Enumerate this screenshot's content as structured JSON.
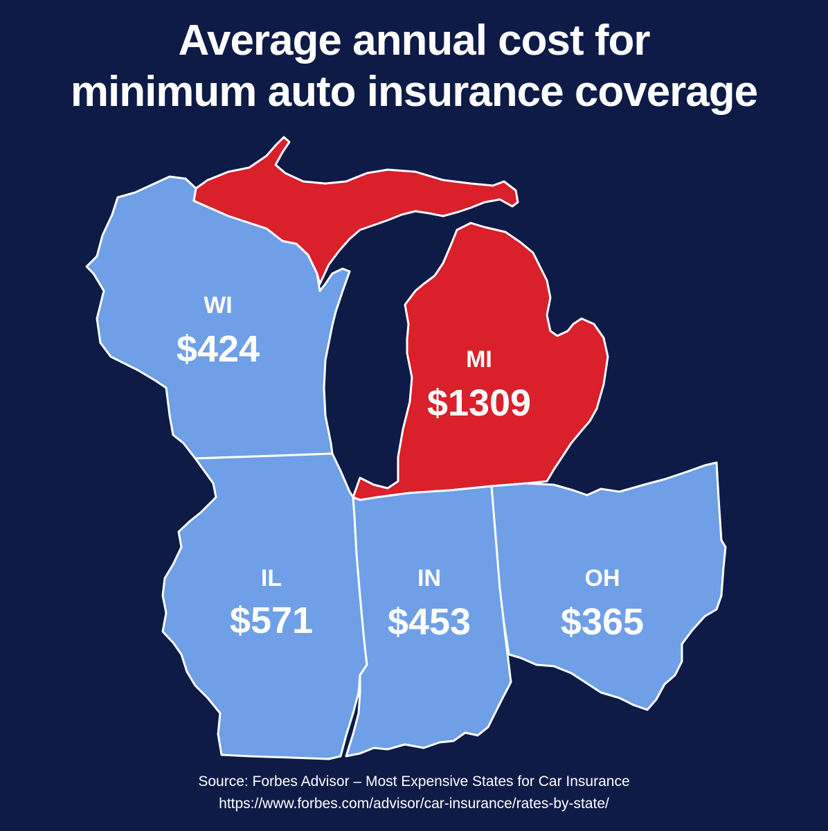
{
  "title": {
    "line1": "Average annual cost for",
    "line2": "minimum auto insurance coverage"
  },
  "colors": {
    "background": "#0e1b47",
    "highlight_state": "#d9202b",
    "default_state": "#6f9fe6",
    "outline": "#ffffff"
  },
  "states": [
    {
      "abbr": "WI",
      "cost": "$424",
      "value": 424,
      "highlighted": false
    },
    {
      "abbr": "MI",
      "cost": "$1309",
      "value": 1309,
      "highlighted": true
    },
    {
      "abbr": "IL",
      "cost": "$571",
      "value": 571,
      "highlighted": false
    },
    {
      "abbr": "IN",
      "cost": "$453",
      "value": 453,
      "highlighted": false
    },
    {
      "abbr": "OH",
      "cost": "$365",
      "value": 365,
      "highlighted": false
    }
  ],
  "source": {
    "line1": "Source: Forbes Advisor – Most Expensive States for Car Insurance",
    "line2": "https://www.forbes.com/advisor/car-insurance/rates-by-state/"
  }
}
